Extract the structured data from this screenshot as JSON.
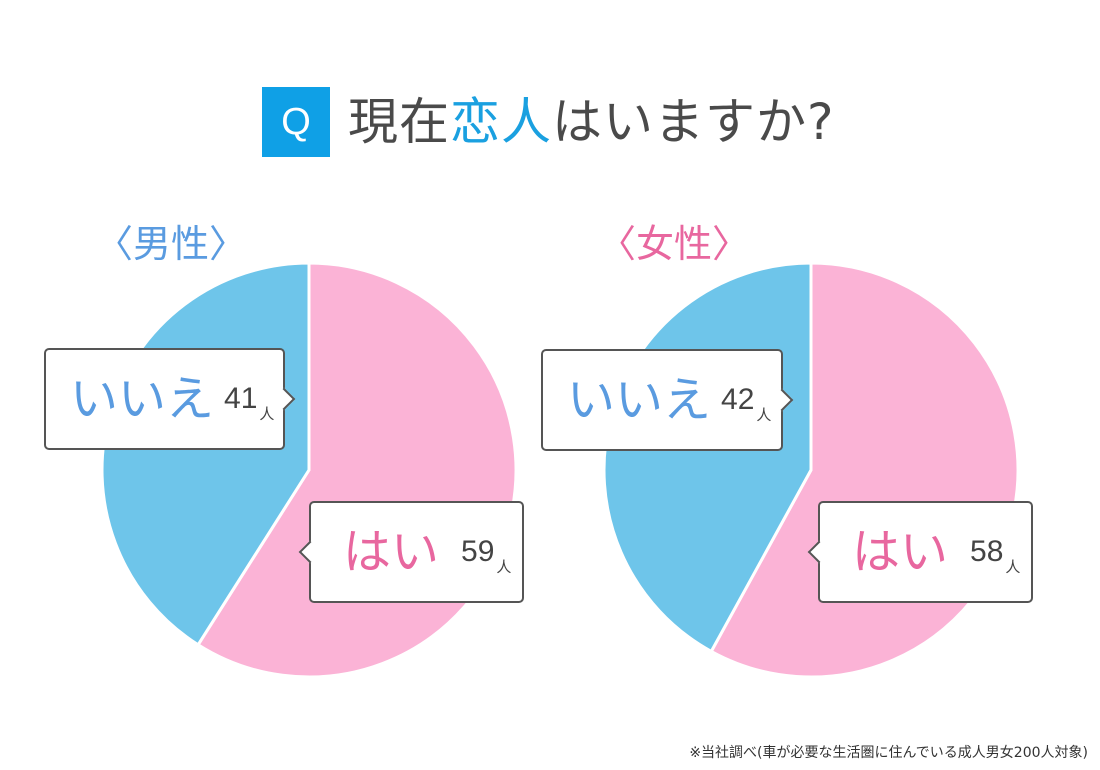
{
  "title": {
    "badge": "Q",
    "prefix": "現在",
    "highlight": "恋人",
    "suffix": "はいますか?"
  },
  "colors": {
    "badge": "#0fa0e6",
    "yes_slice": "#fbb3d6",
    "no_slice": "#6ec5ea",
    "male_label": "#5a9be0",
    "female_label": "#e8679f",
    "yes_text": "#e8679f",
    "no_text": "#5a9be0"
  },
  "male": {
    "label": "〈男性〉",
    "no": {
      "answer": "いいえ",
      "count": "41",
      "unit": "人"
    },
    "yes": {
      "answer": "はい",
      "count": "59",
      "unit": "人"
    }
  },
  "female": {
    "label": "〈女性〉",
    "no": {
      "answer": "いいえ",
      "count": "42",
      "unit": "人"
    },
    "yes": {
      "answer": "はい",
      "count": "58",
      "unit": "人"
    }
  },
  "footnote": "※当社調べ(車が必要な生活圏に住んでいる成人男女200人対象)",
  "chart_data": [
    {
      "type": "pie",
      "title": "〈男性〉",
      "categories": [
        "はい",
        "いいえ"
      ],
      "values": [
        59,
        41
      ],
      "unit": "人"
    },
    {
      "type": "pie",
      "title": "〈女性〉",
      "categories": [
        "はい",
        "いいえ"
      ],
      "values": [
        58,
        42
      ],
      "unit": "人"
    }
  ]
}
